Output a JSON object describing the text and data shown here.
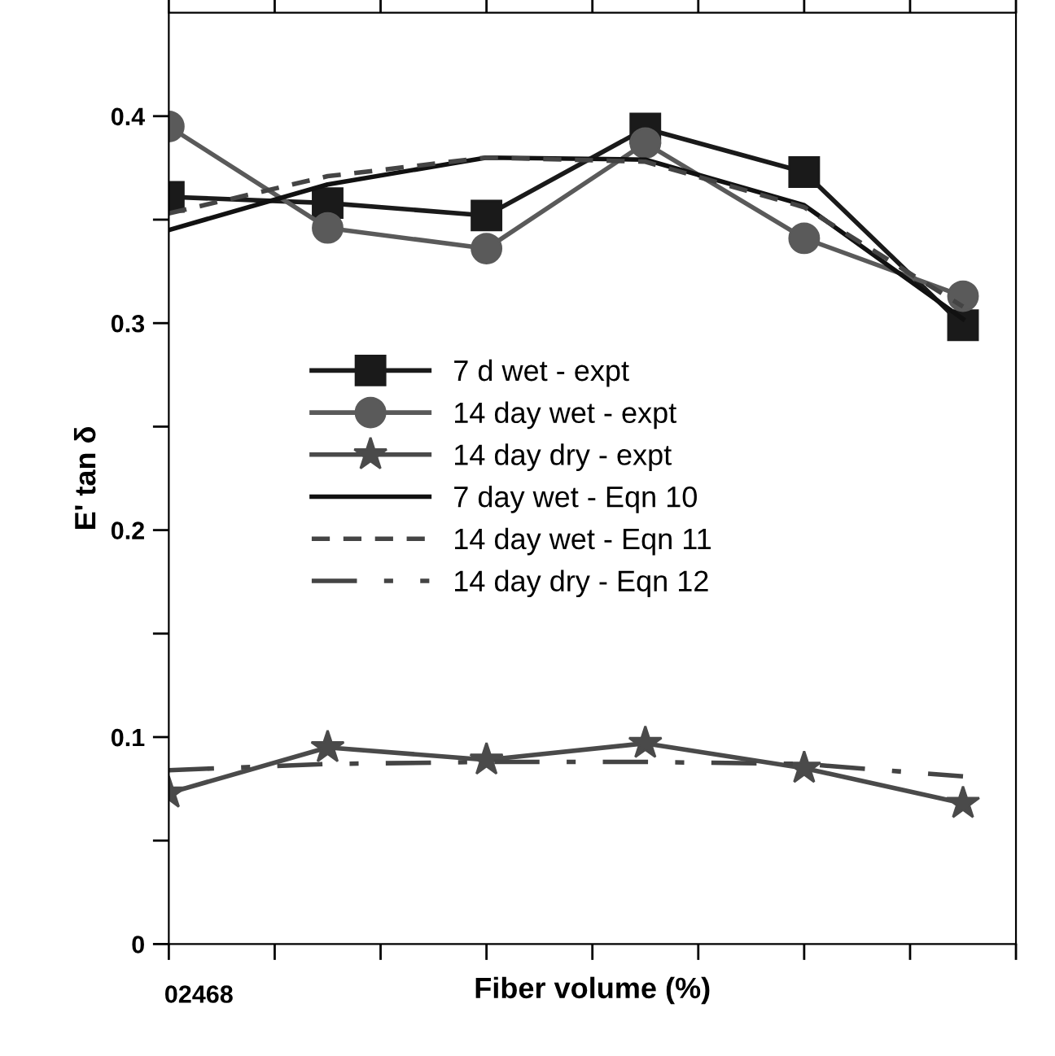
{
  "chart_data": {
    "type": "line",
    "xlabel": "Fiber volume (%)",
    "ylabel": "E' tan δ",
    "annotations": [
      "02468"
    ],
    "categories": [
      null,
      null,
      null,
      null,
      null,
      null
    ],
    "ylim": [
      0,
      0.45
    ],
    "yticks": [
      0,
      0.1,
      0.2,
      0.3,
      0.4,
      {
        "value": 0.05,
        "label": null
      },
      {
        "value": 0.15,
        "label": null
      },
      {
        "value": 0.25,
        "label": null
      },
      {
        "value": 0.35,
        "label": null
      }
    ],
    "grid": false,
    "legend": "center",
    "series": [
      {
        "name": "7 d wet - expt",
        "color": "#1a1a1a",
        "marker": "square",
        "line_style": "solid",
        "values": [
          0.361,
          0.358,
          0.352,
          0.394,
          0.373,
          0.299
        ]
      },
      {
        "name": "14 day wet - expt",
        "color": "#5a5a5a",
        "marker": "circle",
        "line_style": "solid",
        "values": [
          0.395,
          0.346,
          0.336,
          0.387,
          0.341,
          0.313
        ]
      },
      {
        "name": "14 day dry - expt",
        "color": "#4a4a4a",
        "marker": "star",
        "line_style": "solid",
        "values": [
          0.073,
          0.095,
          0.089,
          0.097,
          0.085,
          0.068
        ]
      },
      {
        "name": "7 day wet - Eqn 10",
        "color": "#111111",
        "marker": "none",
        "line_style": "solid",
        "values": [
          0.345,
          0.367,
          0.38,
          0.379,
          0.357,
          0.302
        ]
      },
      {
        "name": "14 day wet - Eqn 11",
        "color": "#444444",
        "marker": "none",
        "line_style": "dashed",
        "values": [
          0.353,
          0.371,
          0.38,
          0.378,
          0.356,
          0.308
        ]
      },
      {
        "name": "14 day dry - Eqn 12",
        "color": "#444444",
        "marker": "none",
        "line_style": "dashdot",
        "values": [
          0.084,
          0.087,
          0.088,
          0.088,
          0.087,
          0.081
        ]
      }
    ]
  }
}
